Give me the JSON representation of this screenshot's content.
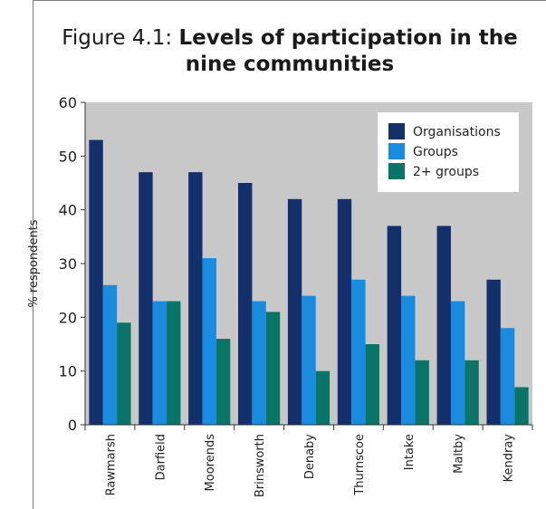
{
  "title": {
    "prefix": "Figure 4.1: ",
    "main": "Levels of participation in the nine communities"
  },
  "chart_data": {
    "type": "bar",
    "title": "Figure 4.1: Levels of participation in the nine communities",
    "ylabel": "% respondents",
    "xlabel": "",
    "ylim": [
      0,
      60
    ],
    "yticks": [
      0,
      10,
      20,
      30,
      40,
      50,
      60
    ],
    "grid": false,
    "legend": "top-right",
    "categories": [
      "Rawmarsh",
      "Darfield",
      "Moorends",
      "Brinsworth",
      "Denaby",
      "Thurnscoe",
      "Intake",
      "Maltby",
      "Kendray"
    ],
    "series": [
      {
        "name": "Organisations",
        "color": "#13306b",
        "values": [
          53,
          47,
          47,
          45,
          42,
          42,
          37,
          37,
          27
        ]
      },
      {
        "name": "Groups",
        "color": "#1a8ce0",
        "values": [
          26,
          23,
          31,
          23,
          24,
          27,
          24,
          23,
          18
        ]
      },
      {
        "name": "2+ groups",
        "color": "#0a7566",
        "values": [
          19,
          23,
          16,
          21,
          10,
          15,
          12,
          12,
          7
        ]
      }
    ],
    "plot_background": "#c8c8c8"
  }
}
